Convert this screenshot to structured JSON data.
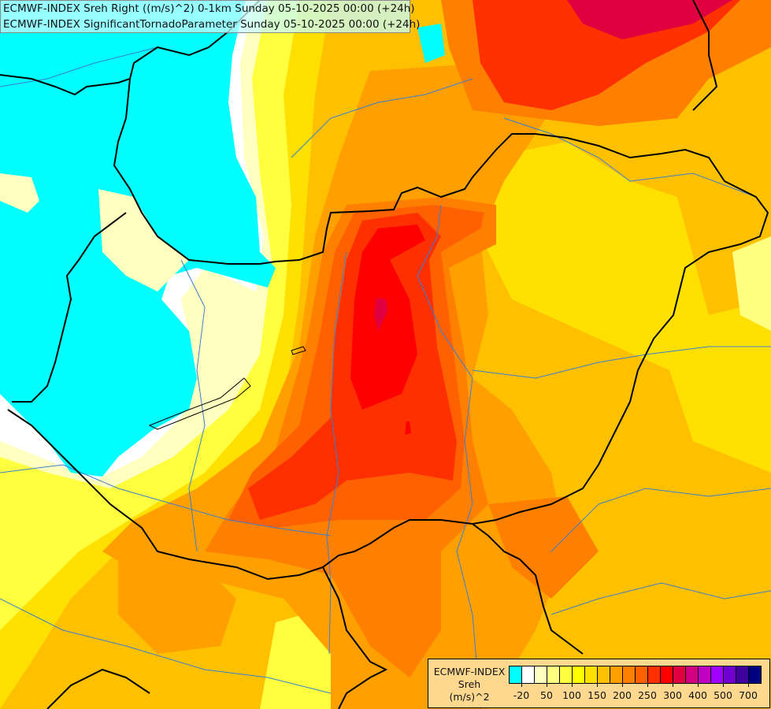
{
  "title": {
    "line1": "ECMWF-INDEX Sreh Right ((m/s)^2) 0-1km Sunday 05-10-2025 00:00 (+24h)",
    "line2": "ECMWF-INDEX SignificantTornadoParameter Sunday 05-10-2025 00:00 (+24h)"
  },
  "legend": {
    "line1": "ECMWF-INDEX",
    "line2": "Sreh",
    "line3": "(m/s)^2",
    "colors": [
      "#00ffff",
      "#ffffff",
      "#ffffc0",
      "#ffff80",
      "#ffff40",
      "#ffff00",
      "#ffe000",
      "#ffc000",
      "#ffa000",
      "#ff8000",
      "#ff6000",
      "#ff3000",
      "#ff0000",
      "#e00040",
      "#d00080",
      "#c000c0",
      "#a000ff",
      "#7000d0",
      "#4000a0",
      "#000080"
    ],
    "labels": [
      "-20",
      "50",
      "100",
      "150",
      "200",
      "250",
      "300",
      "400",
      "500",
      "700"
    ]
  }
}
